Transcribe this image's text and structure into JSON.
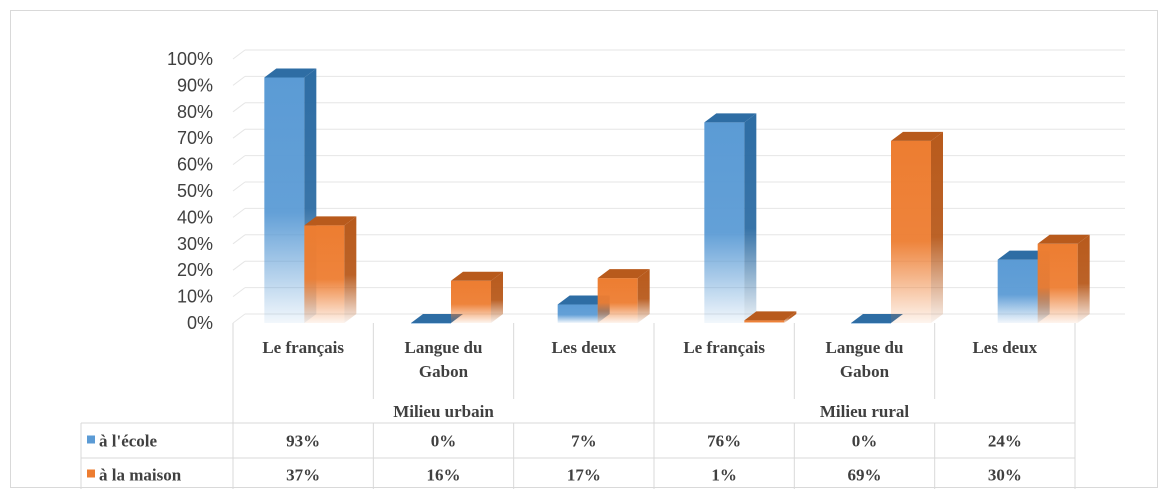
{
  "chart_data": {
    "type": "bar",
    "title": "",
    "ylim": [
      0,
      100
    ],
    "y_ticks": [
      "0%",
      "10%",
      "20%",
      "30%",
      "40%",
      "50%",
      "60%",
      "70%",
      "80%",
      "90%",
      "100%"
    ],
    "groups": [
      {
        "label": "Milieu urbain",
        "categories": [
          "Le français",
          "Langue du Gabon",
          "Les deux"
        ]
      },
      {
        "label": "Milieu rural",
        "categories": [
          "Le français",
          "Langue du Gabon",
          "Les deux"
        ]
      }
    ],
    "categories": [
      [
        "Le français"
      ],
      [
        "Langue du",
        "Gabon"
      ],
      [
        "Les deux"
      ],
      [
        "Le français"
      ],
      [
        "Langue du",
        "Gabon"
      ],
      [
        "Les deux"
      ]
    ],
    "series": [
      {
        "name": "à l'école",
        "values": [
          93,
          0,
          7,
          76,
          0,
          24
        ],
        "labels": [
          "93%",
          "0%",
          "7%",
          "76%",
          "0%",
          "24%"
        ]
      },
      {
        "name": "à la maison",
        "values": [
          37,
          16,
          17,
          1,
          69,
          30
        ],
        "labels": [
          "37%",
          "16%",
          "17%",
          "1%",
          "69%",
          "30%"
        ]
      }
    ],
    "colors": {
      "ecole": "#5b9bd5",
      "ecole_dark": "#2e6da4",
      "maison": "#ed7d31",
      "maison_dark": "#b85a1c",
      "grid": "#e6e6e6",
      "text": "#404040",
      "table_border": "#d9d9d9"
    },
    "legend": "data-table",
    "grid": true
  }
}
